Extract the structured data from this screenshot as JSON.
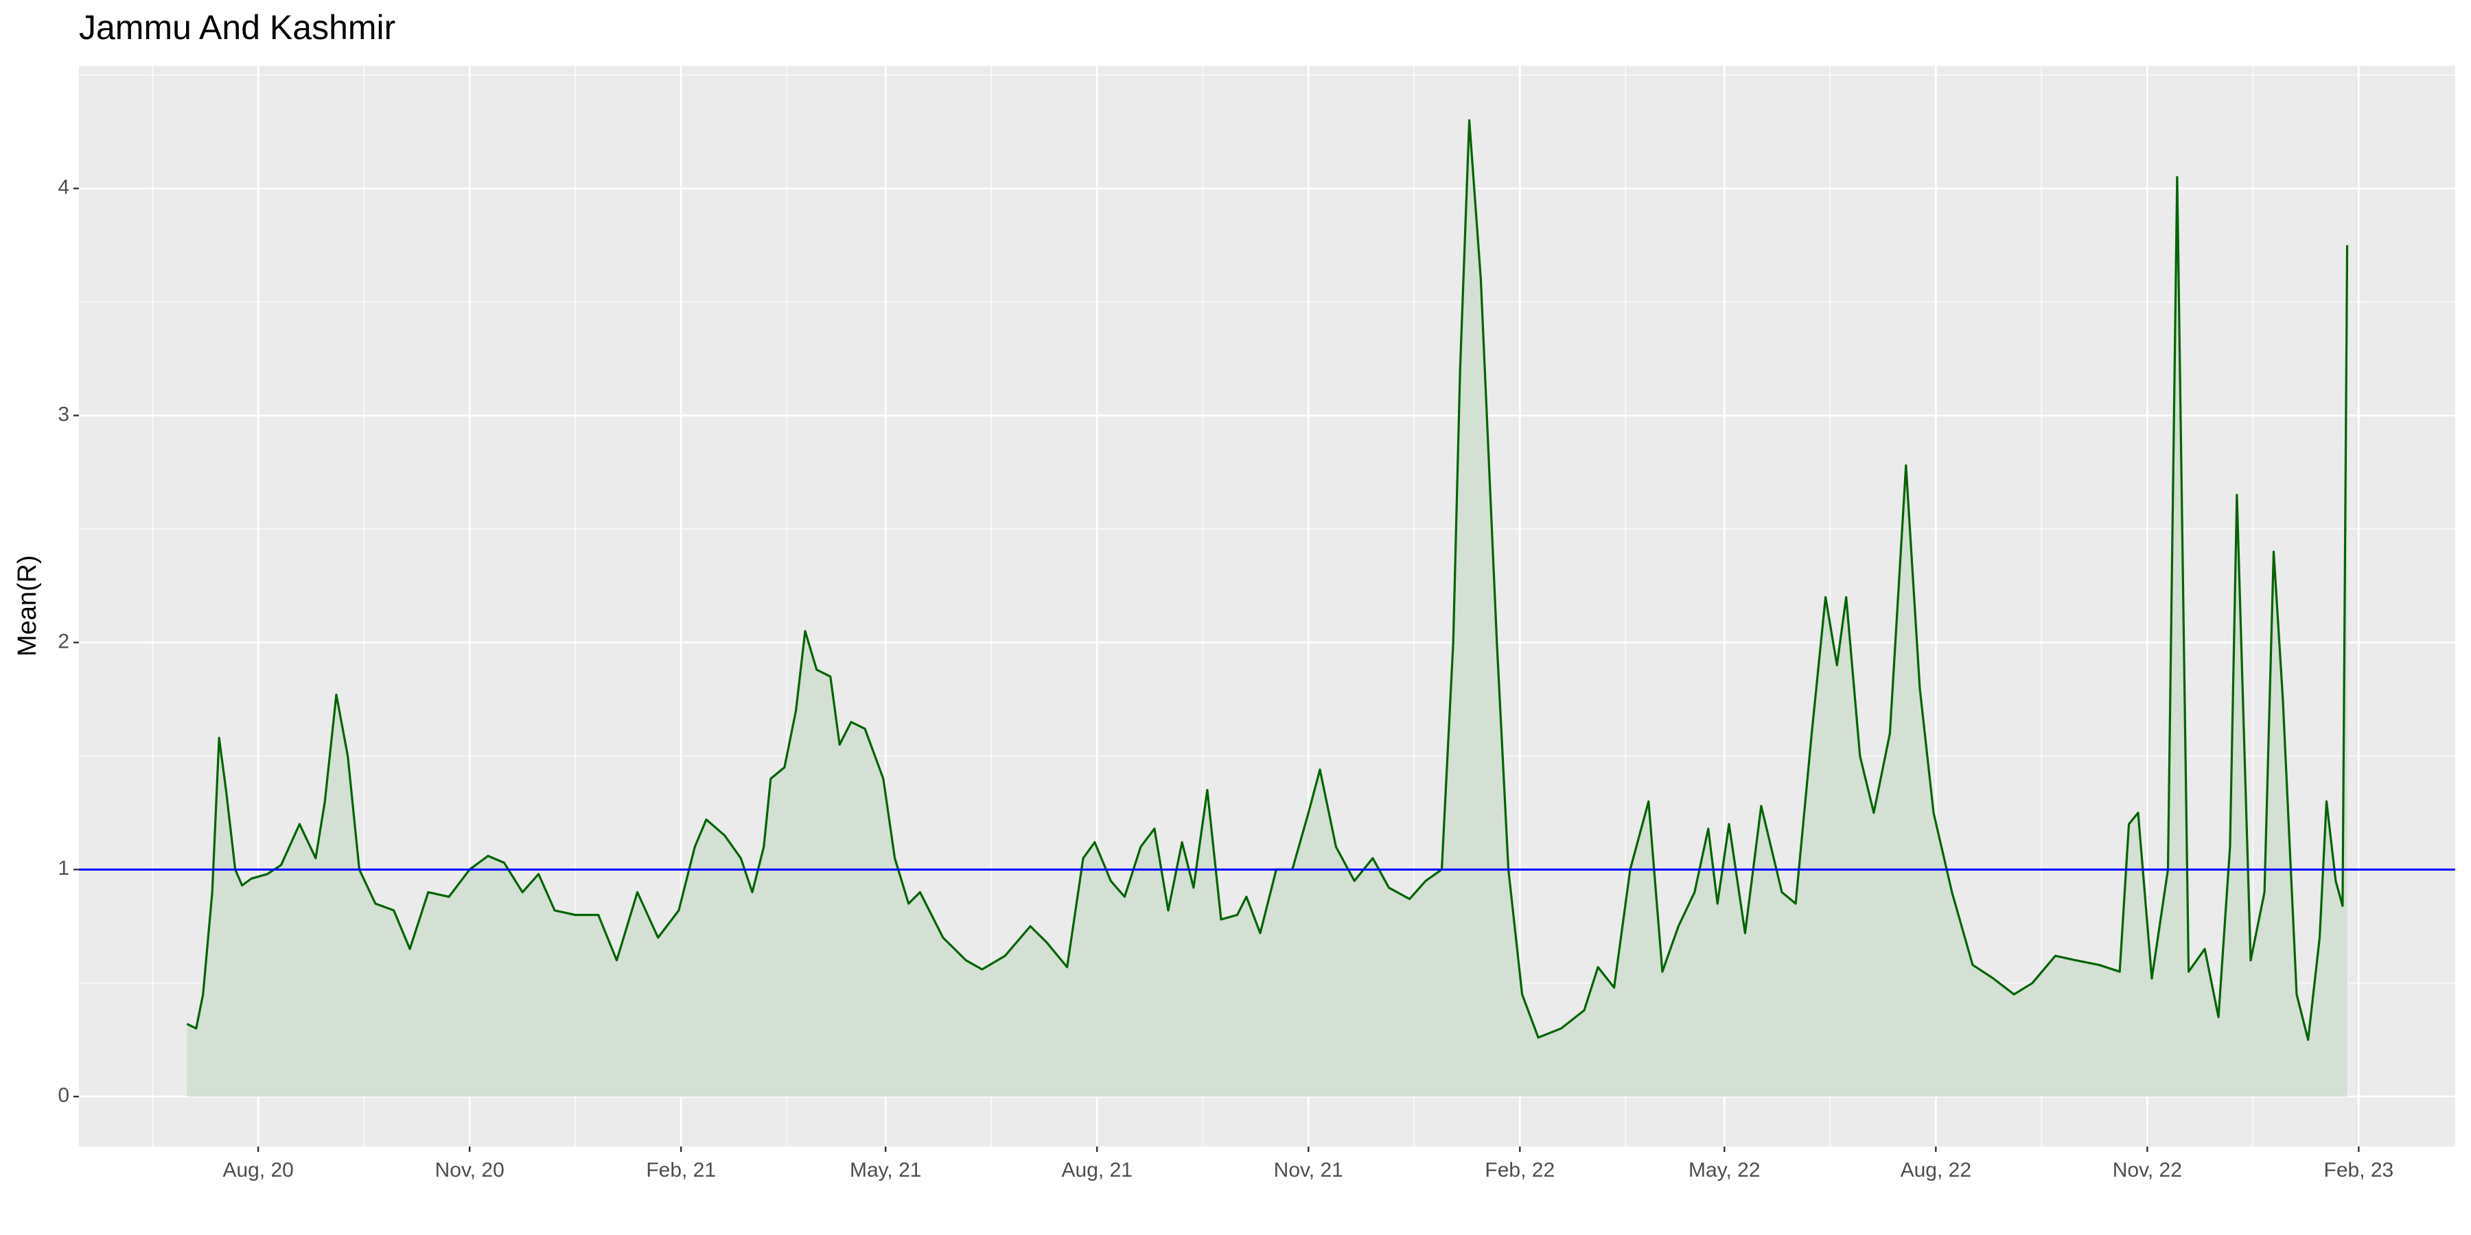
{
  "chart_data": {
    "type": "line",
    "title": "Jammu And Kashmir",
    "y_label": "Mean(R)",
    "x": [
      "2020-07-01",
      "2020-07-05",
      "2020-07-08",
      "2020-07-12",
      "2020-07-15",
      "2020-07-18",
      "2020-07-22",
      "2020-07-25",
      "2020-07-29",
      "2020-08-05",
      "2020-08-11",
      "2020-08-19",
      "2020-08-26",
      "2020-08-30",
      "2020-09-04",
      "2020-09-09",
      "2020-09-14",
      "2020-09-21",
      "2020-09-29",
      "2020-10-06",
      "2020-10-14",
      "2020-10-23",
      "2020-11-01",
      "2020-11-09",
      "2020-11-16",
      "2020-11-24",
      "2020-12-01",
      "2020-12-08",
      "2020-12-17",
      "2020-12-27",
      "2021-01-04",
      "2021-01-13",
      "2021-01-22",
      "2021-01-31",
      "2021-02-07",
      "2021-02-12",
      "2021-02-20",
      "2021-02-27",
      "2021-03-04",
      "2021-03-09",
      "2021-03-12",
      "2021-03-18",
      "2021-03-23",
      "2021-03-27",
      "2021-04-01",
      "2021-04-07",
      "2021-04-11",
      "2021-04-16",
      "2021-04-22",
      "2021-04-30",
      "2021-05-05",
      "2021-05-11",
      "2021-05-16",
      "2021-05-26",
      "2021-06-05",
      "2021-06-12",
      "2021-06-22",
      "2021-07-03",
      "2021-07-10",
      "2021-07-19",
      "2021-07-26",
      "2021-07-31",
      "2021-08-07",
      "2021-08-13",
      "2021-08-20",
      "2021-08-26",
      "2021-09-01",
      "2021-09-07",
      "2021-09-12",
      "2021-09-18",
      "2021-09-24",
      "2021-10-01",
      "2021-10-05",
      "2021-10-11",
      "2021-10-18",
      "2021-10-25",
      "2021-11-01",
      "2021-11-06",
      "2021-11-13",
      "2021-11-21",
      "2021-11-29",
      "2021-12-06",
      "2021-12-15",
      "2021-12-22",
      "2021-12-29",
      "2022-01-03",
      "2022-01-06",
      "2022-01-10",
      "2022-01-15",
      "2022-01-22",
      "2022-01-27",
      "2022-02-02",
      "2022-02-09",
      "2022-02-19",
      "2022-03-01",
      "2022-03-07",
      "2022-03-14",
      "2022-03-21",
      "2022-03-29",
      "2022-04-04",
      "2022-04-11",
      "2022-04-18",
      "2022-04-24",
      "2022-04-28",
      "2022-05-03",
      "2022-05-10",
      "2022-05-17",
      "2022-05-26",
      "2022-06-01",
      "2022-06-08",
      "2022-06-14",
      "2022-06-19",
      "2022-06-23",
      "2022-06-29",
      "2022-07-05",
      "2022-07-12",
      "2022-07-19",
      "2022-07-25",
      "2022-07-31",
      "2022-08-08",
      "2022-08-17",
      "2022-08-26",
      "2022-09-04",
      "2022-09-12",
      "2022-09-22",
      "2022-10-01",
      "2022-10-11",
      "2022-10-20",
      "2022-10-24",
      "2022-10-28",
      "2022-11-03",
      "2022-11-10",
      "2022-11-14",
      "2022-11-19",
      "2022-11-26",
      "2022-12-02",
      "2022-12-07",
      "2022-12-10",
      "2022-12-16",
      "2022-12-22",
      "2022-12-26",
      "2022-12-30",
      "2023-01-05",
      "2023-01-10",
      "2023-01-15",
      "2023-01-18",
      "2023-01-22",
      "2023-01-25",
      "2023-01-27"
    ],
    "values": [
      0.32,
      0.3,
      0.45,
      0.9,
      1.58,
      1.35,
      1.0,
      0.93,
      0.96,
      0.98,
      1.02,
      1.2,
      1.05,
      1.3,
      1.77,
      1.5,
      1.0,
      0.85,
      0.82,
      0.65,
      0.9,
      0.88,
      1.0,
      1.06,
      1.03,
      0.9,
      0.98,
      0.82,
      0.8,
      0.8,
      0.6,
      0.9,
      0.7,
      0.82,
      1.1,
      1.22,
      1.15,
      1.05,
      0.9,
      1.1,
      1.4,
      1.45,
      1.7,
      2.05,
      1.88,
      1.85,
      1.55,
      1.65,
      1.62,
      1.4,
      1.05,
      0.85,
      0.9,
      0.7,
      0.6,
      0.56,
      0.62,
      0.75,
      0.68,
      0.57,
      1.05,
      1.12,
      0.95,
      0.88,
      1.1,
      1.18,
      0.82,
      1.12,
      0.92,
      1.35,
      0.78,
      0.8,
      0.88,
      0.72,
      1.0,
      1.0,
      1.25,
      1.44,
      1.1,
      0.95,
      1.05,
      0.92,
      0.87,
      0.95,
      1.0,
      2.0,
      3.2,
      4.3,
      3.6,
      2.0,
      1.0,
      0.45,
      0.26,
      0.3,
      0.38,
      0.57,
      0.48,
      1.0,
      1.3,
      0.55,
      0.75,
      0.9,
      1.18,
      0.85,
      1.2,
      0.72,
      1.28,
      0.9,
      0.85,
      1.6,
      2.2,
      1.9,
      2.2,
      1.5,
      1.25,
      1.6,
      2.78,
      1.8,
      1.25,
      0.9,
      0.58,
      0.52,
      0.45,
      0.5,
      0.62,
      0.6,
      0.58,
      0.55,
      1.2,
      1.25,
      0.52,
      1.0,
      4.05,
      0.55,
      0.65,
      0.35,
      1.1,
      2.65,
      0.6,
      0.9,
      2.4,
      1.75,
      0.45,
      0.25,
      0.7,
      1.3,
      0.95,
      0.84,
      3.75
    ],
    "color": "#006400",
    "area_color": "#d4e0d4",
    "hline": {
      "value": 1,
      "color": "#0000ff"
    },
    "xlim": [
      "2020-05-15",
      "2023-03-15"
    ],
    "xticks": [
      {
        "value": "2020-08-01",
        "label": "Aug, 20"
      },
      {
        "value": "2020-11-01",
        "label": "Nov, 20"
      },
      {
        "value": "2021-02-01",
        "label": "Feb, 21"
      },
      {
        "value": "2021-05-01",
        "label": "May, 21"
      },
      {
        "value": "2021-08-01",
        "label": "Aug, 21"
      },
      {
        "value": "2021-11-01",
        "label": "Nov, 21"
      },
      {
        "value": "2022-02-01",
        "label": "Feb, 22"
      },
      {
        "value": "2022-05-01",
        "label": "May, 22"
      },
      {
        "value": "2022-08-01",
        "label": "Aug, 22"
      },
      {
        "value": "2022-11-01",
        "label": "Nov, 22"
      },
      {
        "value": "2023-02-01",
        "label": "Feb, 23"
      }
    ],
    "ylim": [
      -0.22,
      4.54
    ],
    "yticks": [
      0,
      1,
      2,
      3,
      4
    ],
    "grid": true
  }
}
